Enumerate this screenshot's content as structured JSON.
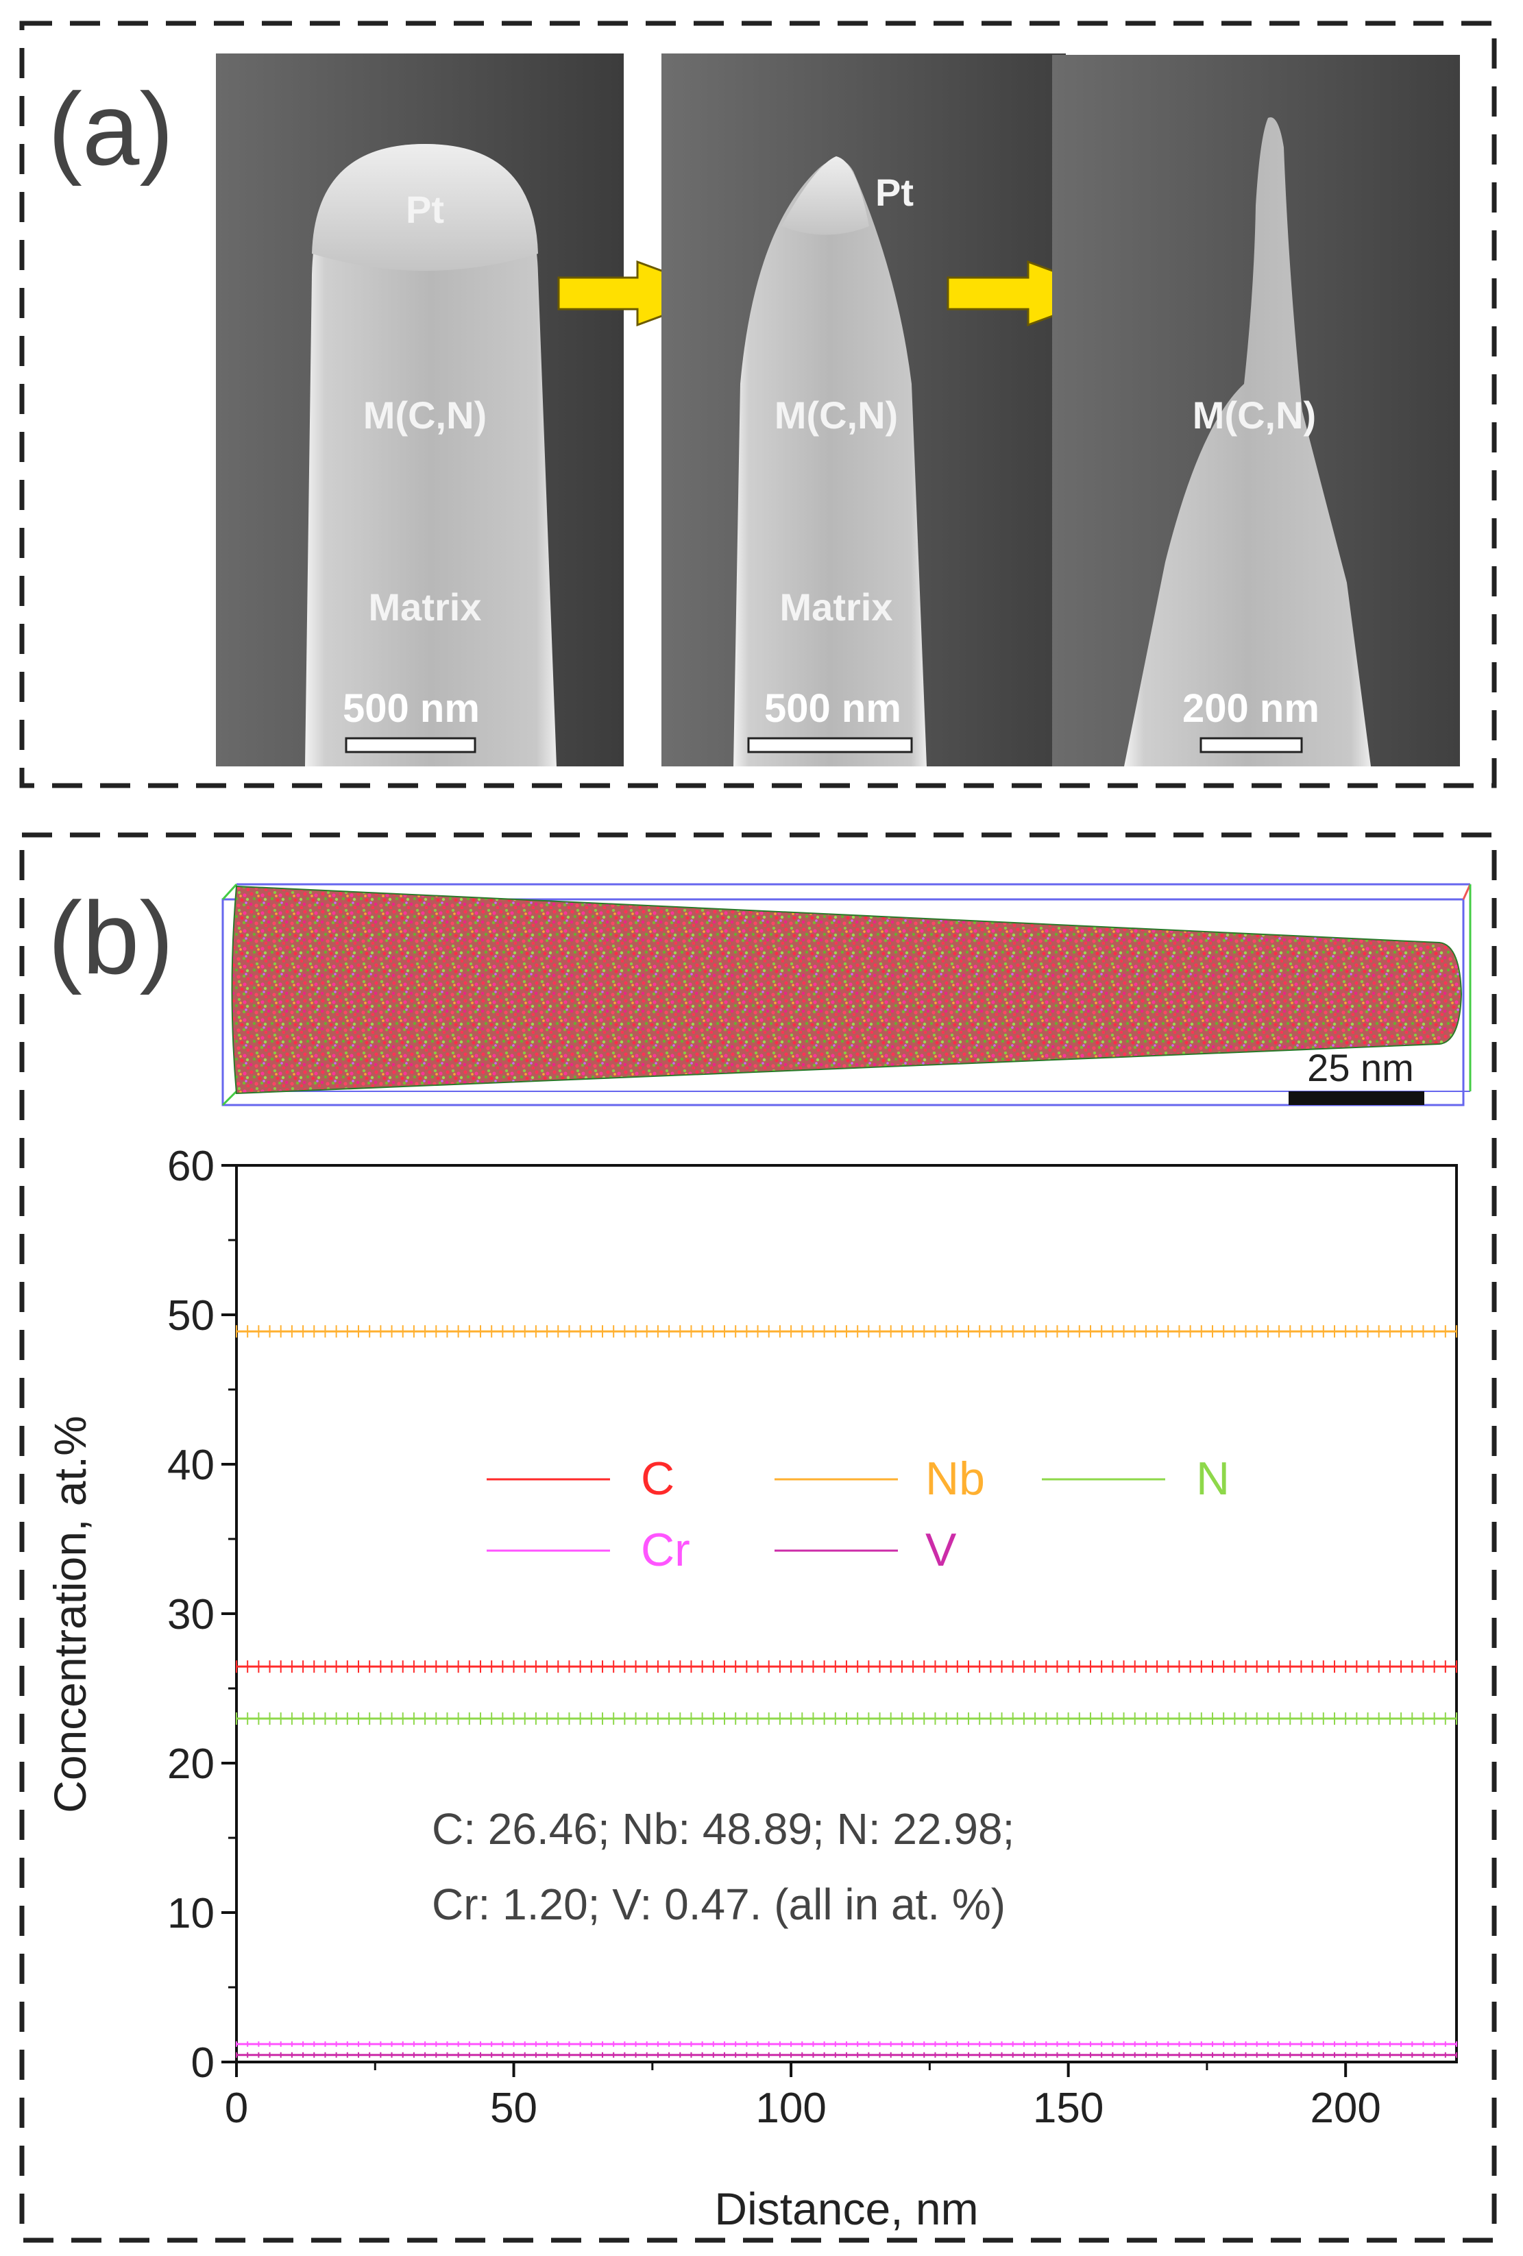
{
  "panel_a": {
    "label": "(a)",
    "images": [
      {
        "labels": [
          "Pt",
          "M(C,N)",
          "Matrix"
        ],
        "scale_text": "500 nm"
      },
      {
        "labels": [
          "Pt",
          "M(C,N)",
          "Matrix"
        ],
        "scale_text": "500 nm"
      },
      {
        "labels": [
          "M(C,N)"
        ],
        "scale_text": "200 nm"
      }
    ]
  },
  "panel_b": {
    "label": "(b)",
    "reconstruction_scale_text": "25 nm",
    "summary_line1": "C: 26.46; Nb: 48.89; N: 22.98;",
    "summary_line2": "Cr: 1.20; V: 0.47. (all in at. %)"
  },
  "colors": {
    "C": "#ff2a2a",
    "Nb": "#ffb030",
    "N": "#8ed84a",
    "Cr": "#ff55ff",
    "V": "#cc2ca8",
    "arrow": "#ffe000"
  },
  "chart_data": {
    "type": "line",
    "title": "",
    "xlabel": "Distance, nm",
    "ylabel": "Concentration, at.%",
    "xlim": [
      0,
      220
    ],
    "ylim": [
      0,
      60
    ],
    "xticks": [
      0,
      50,
      100,
      150,
      200
    ],
    "yticks": [
      0,
      10,
      20,
      30,
      40,
      50,
      60
    ],
    "grid": false,
    "legend_position": "center",
    "series": [
      {
        "name": "C",
        "color": "#ff2a2a",
        "x": [
          0,
          220
        ],
        "values": [
          26.46,
          26.46
        ]
      },
      {
        "name": "Nb",
        "color": "#ffb030",
        "x": [
          0,
          220
        ],
        "values": [
          48.89,
          48.89
        ]
      },
      {
        "name": "N",
        "color": "#8ed84a",
        "x": [
          0,
          220
        ],
        "values": [
          22.98,
          22.98
        ]
      },
      {
        "name": "Cr",
        "color": "#ff55ff",
        "x": [
          0,
          220
        ],
        "values": [
          1.2,
          1.2
        ]
      },
      {
        "name": "V",
        "color": "#cc2ca8",
        "x": [
          0,
          220
        ],
        "values": [
          0.47,
          0.47
        ]
      }
    ]
  }
}
